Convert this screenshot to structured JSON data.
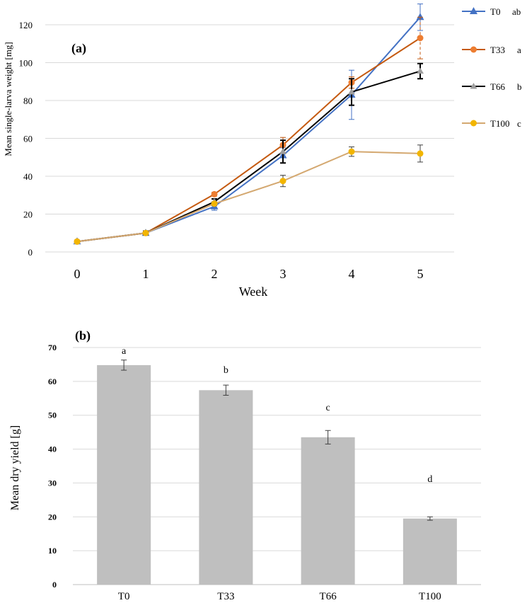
{
  "chart_data": [
    {
      "panel_label": "(a)",
      "type": "line",
      "xlabel": "Week",
      "ylabel": "Mean single-larva weight [mg]",
      "x": [
        0,
        1,
        2,
        3,
        4,
        5
      ],
      "x_tick_labels": [
        "0",
        "1",
        "2",
        "3",
        "4",
        "5"
      ],
      "y_tick_labels": [
        "0",
        "20",
        "40",
        "60",
        "80",
        "100",
        "120"
      ],
      "ylim": [
        0,
        120
      ],
      "grid": "horizontal",
      "legend_position": "right",
      "series": [
        {
          "name": "T0",
          "group": "ab",
          "color": "#4472c4",
          "marker": "triangle",
          "dashed_error": false,
          "values": [
            5.5,
            10,
            24,
            51,
            83,
            124
          ],
          "errors": [
            0.5,
            1,
            2,
            4,
            13,
            7
          ]
        },
        {
          "name": "T33",
          "group": "a",
          "color": "#c55a11",
          "marker": "circle",
          "dashed_error": true,
          "values": [
            5.5,
            10,
            30.5,
            56.5,
            89.5,
            113
          ],
          "errors": [
            0.5,
            1,
            1,
            4,
            3,
            11
          ]
        },
        {
          "name": "T66",
          "group": "b",
          "color": "#000000",
          "marker": "triangle-gray",
          "dashed_error": false,
          "values": [
            5.5,
            10,
            26.5,
            53,
            84.5,
            95.5
          ],
          "errors": [
            0.5,
            1,
            1.5,
            6,
            7,
            4
          ]
        },
        {
          "name": "T100",
          "group": "c",
          "color": "#d4a870",
          "marker": "circle-yellow",
          "dashed_error": false,
          "values": [
            5.5,
            10,
            25.5,
            37.5,
            53,
            52
          ],
          "errors": [
            0.5,
            1,
            1,
            3,
            2.5,
            4.5
          ]
        }
      ]
    },
    {
      "panel_label": "(b)",
      "type": "bar",
      "ylabel": "Mean dry yield [g]",
      "xlabel": "",
      "categories": [
        "T0",
        "T33",
        "T66",
        "T100"
      ],
      "values": [
        64.8,
        57.4,
        43.5,
        19.5
      ],
      "errors": [
        1.5,
        1.5,
        2,
        0.5
      ],
      "letters": [
        "a",
        "b",
        "c",
        "d"
      ],
      "y_tick_labels": [
        "0",
        "10",
        "20",
        "30",
        "40",
        "50",
        "60",
        "70"
      ],
      "ylim": [
        0,
        70
      ],
      "bar_color": "#bfbfbf",
      "grid": "horizontal"
    }
  ]
}
